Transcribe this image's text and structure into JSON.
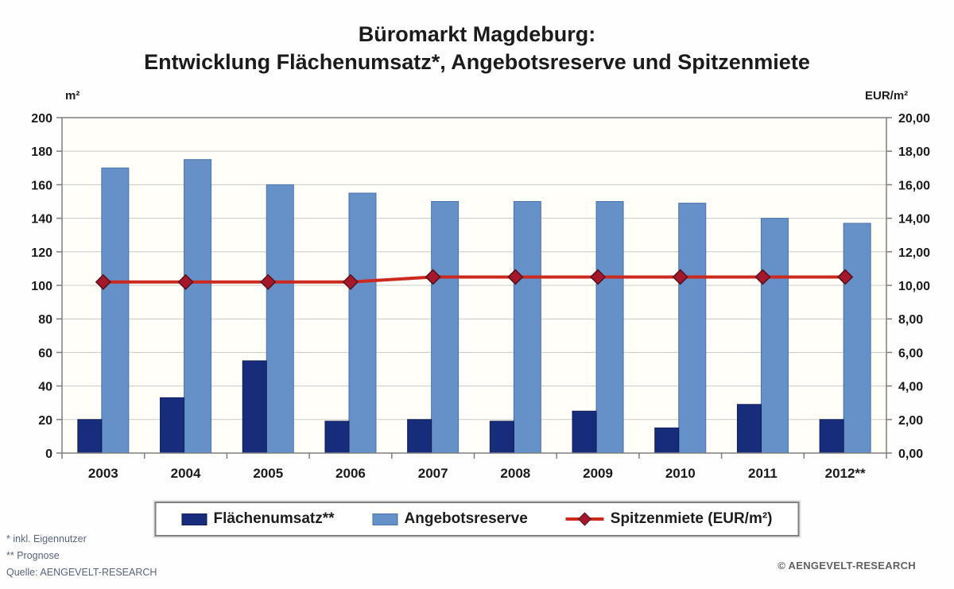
{
  "title": {
    "line1": "Büromarkt Magdeburg:",
    "line2": "Entwicklung Flächenumsatz*, Angebotsreserve und Spitzenmiete"
  },
  "chart_data": {
    "type": "bar",
    "categories": [
      "2003",
      "2004",
      "2005",
      "2006",
      "2007",
      "2008",
      "2009",
      "2010",
      "2011",
      "2012**"
    ],
    "series": [
      {
        "name": "Flächenumsatz**",
        "type": "bar",
        "axis": "left",
        "color": "#182c7c",
        "border_color": "#0e1d55",
        "values": [
          20,
          33,
          55,
          19,
          20,
          19,
          25,
          15,
          29,
          20
        ]
      },
      {
        "name": "Angebotsreserve",
        "type": "bar",
        "axis": "left",
        "color": "#6690c8",
        "border_color": "#4a72a8",
        "values": [
          170,
          175,
          160,
          155,
          150,
          150,
          150,
          149,
          140,
          137
        ]
      },
      {
        "name": "Spitzenmiete (EUR/m²)",
        "type": "line",
        "axis": "right",
        "color": "#cc2a1e",
        "marker_color": "#a5182b",
        "marker_border_color": "#55101c",
        "values": [
          10.2,
          10.2,
          10.2,
          10.2,
          10.5,
          10.5,
          10.5,
          10.5,
          10.5,
          10.5
        ]
      }
    ],
    "left_axis": {
      "label": "m²",
      "min": 0,
      "max": 200,
      "step": 20,
      "ticks": [
        "0",
        "20",
        "40",
        "60",
        "80",
        "100",
        "120",
        "140",
        "160",
        "180",
        "200"
      ]
    },
    "right_axis": {
      "label": "EUR/m²",
      "min": 0,
      "max": 20,
      "step": 2,
      "ticks": [
        "0,00",
        "2,00",
        "4,00",
        "6,00",
        "8,00",
        "10,00",
        "12,00",
        "14,00",
        "16,00",
        "18,00",
        "20,00"
      ]
    },
    "grid": true,
    "legend_position": "bottom",
    "gridline_color": "#c9c9c9",
    "axis_color": "#7f7f7f",
    "plot_bg": "#fffef8",
    "tick_label_color": "#1a1a1a"
  },
  "footnotes": {
    "line1": "* inkl. Eigennutzer",
    "line2": "** Prognose",
    "line3": "Quelle: AENGEVELT-RESEARCH"
  },
  "copyright": "© AENGEVELT-RESEARCH"
}
